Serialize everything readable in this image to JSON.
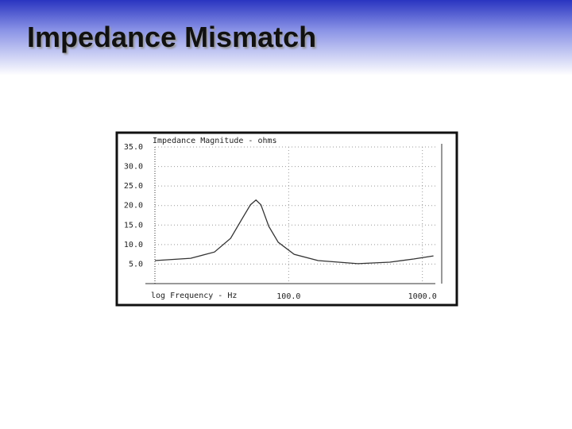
{
  "slide": {
    "title": "Impedance Mismatch"
  },
  "chart_data": {
    "type": "line",
    "title": "Impedance Magnitude - ohms",
    "x_label": "log Frequency - Hz",
    "x_scale": "log",
    "xlim": [
      10,
      1250
    ],
    "ylim": [
      0,
      35
    ],
    "xticks": [
      {
        "value": 100,
        "label": "100.0"
      },
      {
        "value": 1000,
        "label": "1000.0"
      }
    ],
    "yticks": [
      {
        "value": 5,
        "label": "5.0"
      },
      {
        "value": 10,
        "label": "10.0"
      },
      {
        "value": 15,
        "label": "15.0"
      },
      {
        "value": 20,
        "label": "20.0"
      },
      {
        "value": 25,
        "label": "25.0"
      },
      {
        "value": 30,
        "label": "30.0"
      },
      {
        "value": 35,
        "label": "35.0"
      }
    ],
    "grid": true,
    "x": [
      10,
      18.5,
      27.9,
      36.8,
      45,
      51.8,
      57,
      62,
      71,
      83.6,
      110,
      166,
      329,
      570,
      860,
      1210
    ],
    "series": [
      {
        "name": "Impedance",
        "color": "#333333",
        "values": [
          5.9,
          6.5,
          8.1,
          11.6,
          16.7,
          20.2,
          21.4,
          20.2,
          14.7,
          10.6,
          7.5,
          5.9,
          5.1,
          5.5,
          6.3,
          7.1
        ]
      }
    ]
  }
}
